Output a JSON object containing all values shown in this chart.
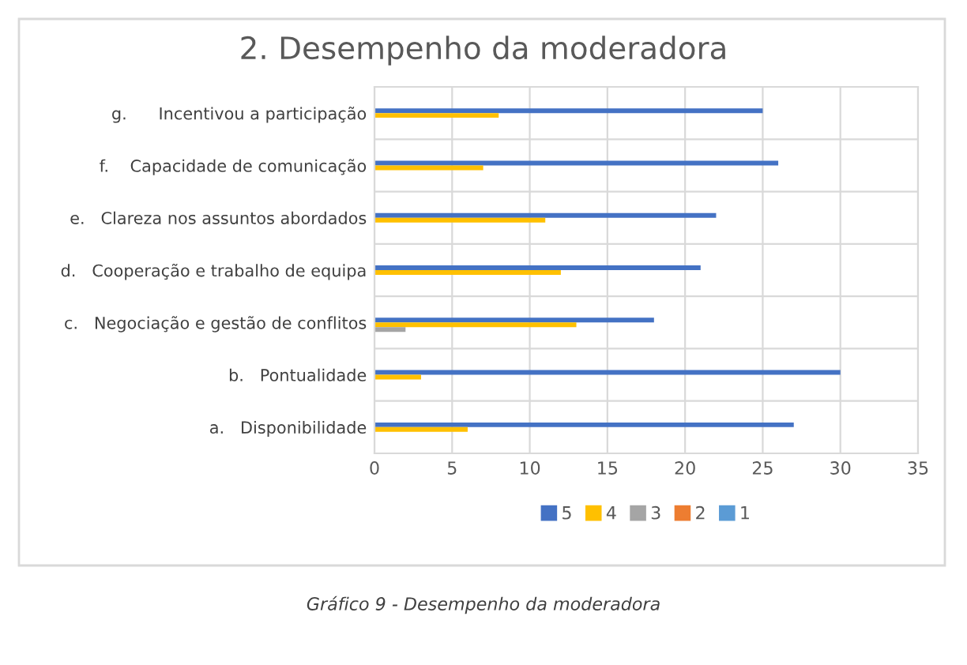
{
  "chart_data": {
    "type": "bar",
    "orientation": "horizontal",
    "title": "2. Desempenho da moderadora",
    "categories": [
      "g.      Incentivou a participação",
      "f.    Capacidade de comunicação",
      "e.   Clareza nos assuntos abordados",
      "d.   Cooperação e trabalho de equipa",
      "c.   Negociação e gestão de conflitos",
      "b.   Pontualidade",
      "a.   Disponibilidade"
    ],
    "series": [
      {
        "name": "5",
        "color": "#4472c4",
        "values": [
          25,
          26,
          22,
          21,
          18,
          30,
          27
        ]
      },
      {
        "name": "4",
        "color": "#ffc000",
        "values": [
          8,
          7,
          11,
          12,
          13,
          3,
          6
        ]
      },
      {
        "name": "3",
        "color": "#a5a5a5",
        "values": [
          0,
          0,
          0,
          0,
          2,
          0,
          0
        ]
      },
      {
        "name": "2",
        "color": "#ed7d31",
        "values": [
          0,
          0,
          0,
          0,
          0,
          0,
          0
        ]
      },
      {
        "name": "1",
        "color": "#5b9bd5",
        "values": [
          0,
          0,
          0,
          0,
          0,
          0,
          0
        ]
      }
    ],
    "xlim": [
      0,
      35
    ],
    "xticks": [
      0,
      5,
      10,
      15,
      20,
      25,
      30,
      35
    ],
    "grid": "x",
    "legend": "bottom",
    "annotations": [
      "Gráfico 9 - Desempenho da moderadora"
    ]
  }
}
